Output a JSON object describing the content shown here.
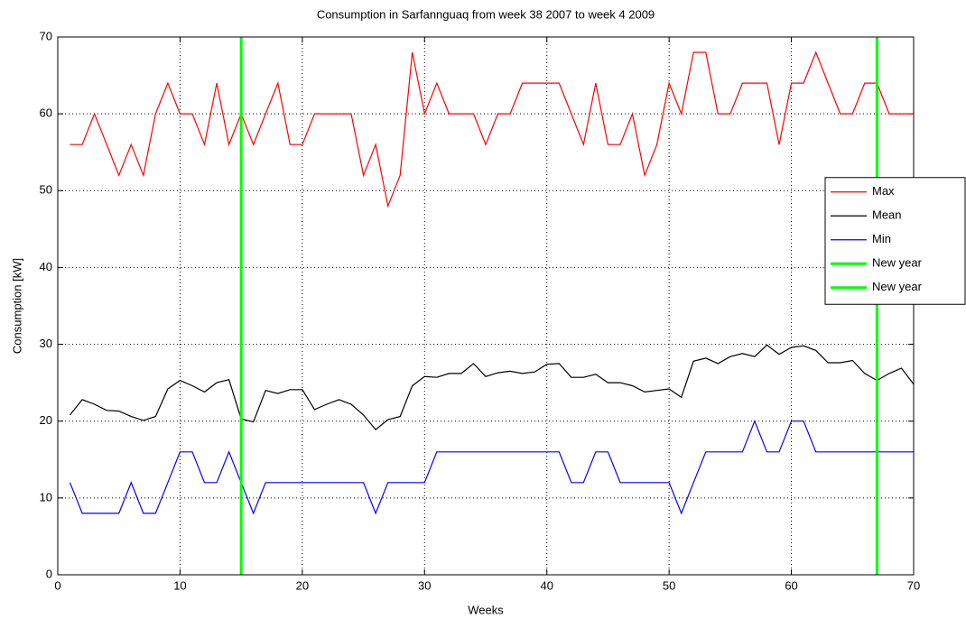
{
  "chart_data": {
    "type": "line",
    "title": "Consumption in Sarfannguaq from week 38 2007 to week 4 2009",
    "x_label": "Weeks",
    "y_label": "Consumption [kW]",
    "x": [
      1,
      2,
      3,
      4,
      5,
      6,
      7,
      8,
      9,
      10,
      11,
      12,
      13,
      14,
      15,
      16,
      17,
      18,
      19,
      20,
      21,
      22,
      23,
      24,
      25,
      26,
      27,
      28,
      29,
      30,
      31,
      32,
      33,
      34,
      35,
      36,
      37,
      38,
      39,
      40,
      41,
      42,
      43,
      44,
      45,
      46,
      47,
      48,
      49,
      50,
      51,
      52,
      53,
      54,
      55,
      56,
      57,
      58,
      59,
      60,
      61,
      62,
      63,
      64,
      65,
      66,
      67,
      68,
      69,
      70
    ],
    "series": [
      {
        "name": "Max",
        "color": "#ff0000",
        "values": [
          56,
          56,
          60,
          56,
          52,
          56,
          52,
          60,
          64,
          60,
          60,
          56,
          64,
          56,
          60,
          56,
          60,
          64,
          56,
          56,
          60,
          60,
          60,
          60,
          52,
          56,
          48,
          52,
          68,
          60,
          64,
          60,
          60,
          60,
          56,
          60,
          60,
          64,
          64,
          64,
          64,
          60,
          56,
          64,
          56,
          56,
          60,
          52,
          56,
          64,
          60,
          68,
          68,
          60,
          60,
          64,
          64,
          64,
          56,
          64,
          64,
          68,
          64,
          60,
          60,
          64,
          64,
          60,
          60,
          60
        ]
      },
      {
        "name": "Mean",
        "color": "#000000",
        "values": [
          20.8,
          22.8,
          22.2,
          21.4,
          21.3,
          20.6,
          20.1,
          20.6,
          24.2,
          25.3,
          24.6,
          23.8,
          25,
          25.4,
          20.3,
          19.9,
          24,
          23.6,
          24.1,
          24.1,
          21.5,
          22.2,
          22.8,
          22.2,
          20.8,
          18.9,
          20.2,
          20.6,
          24.6,
          25.8,
          25.7,
          26.2,
          26.2,
          27.5,
          25.8,
          26.3,
          26.5,
          26.2,
          26.4,
          27.4,
          27.5,
          25.7,
          25.7,
          26.1,
          25,
          25,
          24.6,
          23.8,
          24,
          24.2,
          23.1,
          27.8,
          28.2,
          27.5,
          28.4,
          28.8,
          28.4,
          29.9,
          28.7,
          29.6,
          29.8,
          29.2,
          27.6,
          27.6,
          27.9,
          26.2,
          25.3,
          26.2,
          26.9,
          24.8
        ]
      },
      {
        "name": "Min",
        "color": "#0000ff",
        "values": [
          12,
          8,
          8,
          8,
          8,
          12,
          8,
          8,
          12,
          16,
          16,
          12,
          12,
          16,
          12,
          8,
          12,
          12,
          12,
          12,
          12,
          12,
          12,
          12,
          12,
          8,
          12,
          12,
          12,
          12,
          16,
          16,
          16,
          16,
          16,
          16,
          16,
          16,
          16,
          16,
          16,
          12,
          12,
          16,
          16,
          12,
          12,
          12,
          12,
          12,
          8,
          12,
          16,
          16,
          16,
          16,
          20,
          16,
          16,
          20,
          20,
          16,
          16,
          16,
          16,
          16,
          16,
          16,
          16,
          16
        ]
      }
    ],
    "new_year_lines": [
      {
        "name": "New year",
        "color": "#00ff00",
        "x": 15
      },
      {
        "name": "New year",
        "color": "#00ff00",
        "x": 67
      }
    ],
    "xlim": [
      0,
      70
    ],
    "ylim": [
      0,
      70
    ],
    "xticks": [
      0,
      10,
      20,
      30,
      40,
      50,
      60,
      70
    ],
    "yticks": [
      0,
      10,
      20,
      30,
      40,
      50,
      60,
      70
    ],
    "grid": true,
    "legend_position": "east"
  }
}
